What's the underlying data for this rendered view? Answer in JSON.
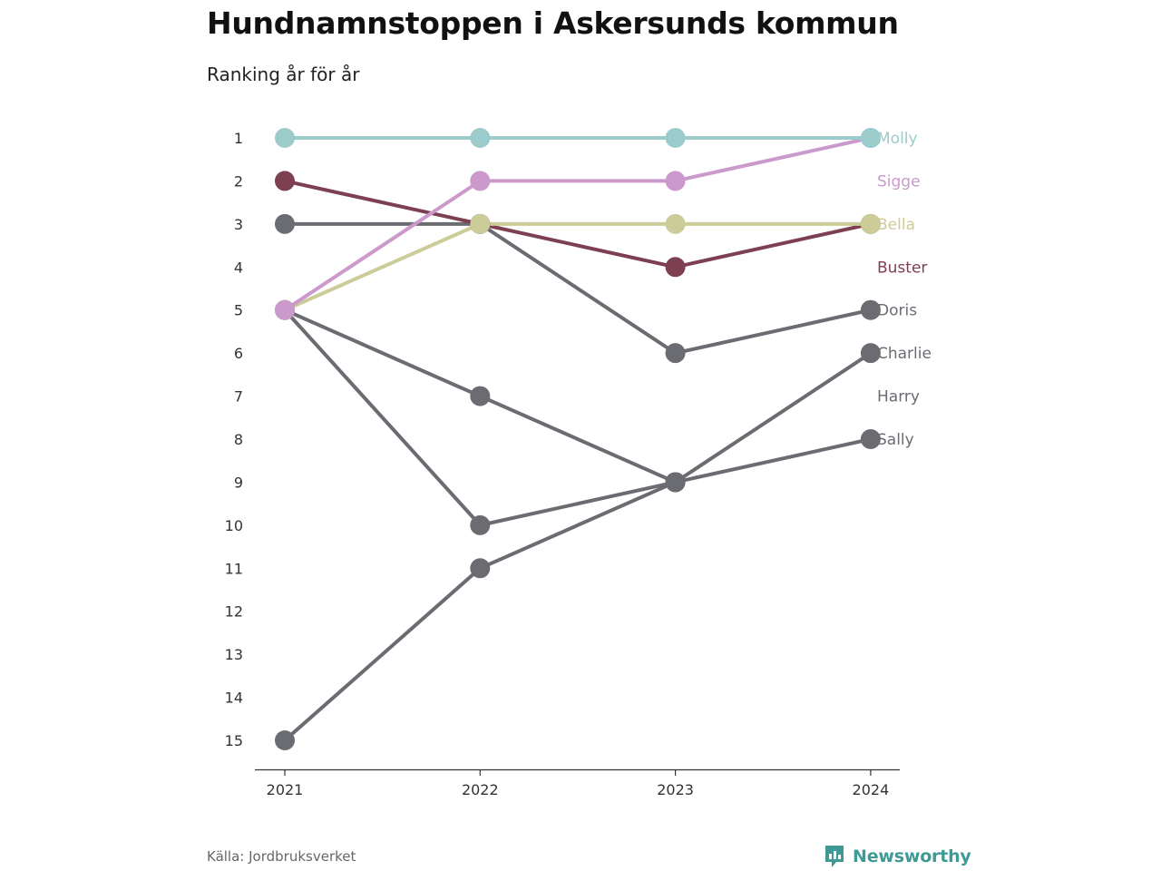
{
  "title": "Hundnamnstoppen i Askersunds kommun",
  "subtitle": "Ranking år för år",
  "source": "Källa: Jordbruksverket",
  "brand": "Newsworthy",
  "colors": {
    "grey": "#6b6b72",
    "molly": "#9bcccb",
    "sigge": "#cc99cc",
    "bella": "#cccc99",
    "buster": "#7d3f52",
    "brand": "#3f9a95"
  },
  "chart_data": {
    "type": "line",
    "subtype": "bump",
    "x": [
      "2021",
      "2022",
      "2023",
      "2024"
    ],
    "y_ticks": [
      1,
      2,
      3,
      4,
      5,
      6,
      7,
      8,
      9,
      10,
      11,
      12,
      13,
      14,
      15
    ],
    "ylim": [
      1,
      15
    ],
    "y_inverted": true,
    "grid": false,
    "series": [
      {
        "name": "Harry",
        "color": "#6b6b72",
        "values": [
          5,
          10,
          9,
          null
        ]
      },
      {
        "name": "Sally",
        "color": "#6b6b72",
        "values": [
          5,
          7,
          9,
          8
        ]
      },
      {
        "name": "Charlie",
        "color": "#6b6b72",
        "values": [
          15,
          11,
          9,
          6
        ]
      },
      {
        "name": "Doris",
        "color": "#6b6b72",
        "values": [
          3,
          3,
          6,
          5
        ]
      },
      {
        "name": "Buster",
        "color": "#7d3f52",
        "values": [
          2,
          3,
          4,
          3
        ]
      },
      {
        "name": "Bella",
        "color": "#cccc99",
        "values": [
          5,
          3,
          3,
          3
        ]
      },
      {
        "name": "Sigge",
        "color": "#cc99cc",
        "values": [
          5,
          2,
          2,
          1
        ]
      },
      {
        "name": "Molly",
        "color": "#9bcccb",
        "values": [
          1,
          1,
          1,
          1
        ]
      }
    ],
    "end_labels": [
      "Molly",
      "Sigge",
      "Bella",
      "Buster",
      "Doris",
      "Charlie",
      "Harry",
      "Sally"
    ]
  }
}
